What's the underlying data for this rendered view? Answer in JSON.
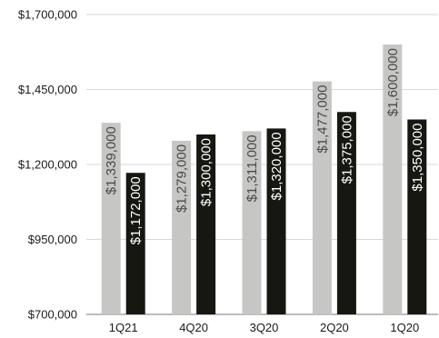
{
  "chart_data": {
    "type": "bar",
    "categories": [
      "1Q21",
      "4Q20",
      "3Q20",
      "2Q20",
      "1Q20"
    ],
    "series": [
      {
        "values": [
          1339000,
          1279000,
          1311000,
          1477000,
          1600000
        ],
        "labels": [
          "$1,339,000",
          "$1,279,000",
          "$1,311,000",
          "$1,477,000",
          "$1,600,000"
        ],
        "color": "#c6c6c4",
        "label_color": "#4a4a48"
      },
      {
        "values": [
          1172000,
          1300000,
          1320000,
          1375000,
          1350000
        ],
        "labels": [
          "$1,172,000",
          "$1,300,000",
          "$1,320,000",
          "$1,375,000",
          "$1,350,000"
        ],
        "color": "#171712",
        "label_color": "#ffffff"
      }
    ],
    "ylim": [
      700000,
      1700000
    ],
    "yticks": [
      700000,
      950000,
      1200000,
      1450000,
      1700000
    ],
    "ytick_labels": [
      "$700,000",
      "$950,000",
      "$1,200,000",
      "$1,450,000",
      "$1,700,000"
    ],
    "grid": true,
    "grid_color": "#d9d9d9",
    "axis_color": "#a6a6a6",
    "xlabel": "",
    "ylabel": "",
    "title": ""
  }
}
